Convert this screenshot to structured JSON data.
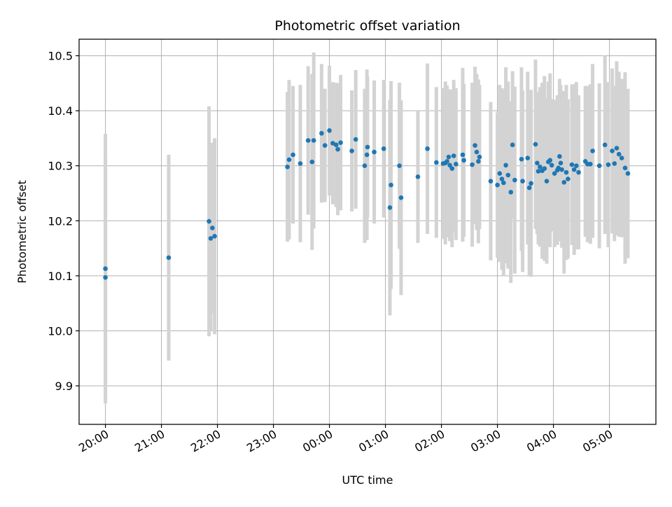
{
  "chart_data": {
    "type": "scatter",
    "title": "Photometric offset variation",
    "xlabel": "UTC time",
    "ylabel": "Photometric offset",
    "xlim": [
      -0.47,
      9.83
    ],
    "ylim": [
      9.83,
      10.53
    ],
    "grid": true,
    "x_ticks": [
      {
        "value": 0,
        "label": "20:00"
      },
      {
        "value": 1,
        "label": "21:00"
      },
      {
        "value": 2,
        "label": "22:00"
      },
      {
        "value": 3,
        "label": "23:00"
      },
      {
        "value": 4,
        "label": "00:00"
      },
      {
        "value": 5,
        "label": "01:00"
      },
      {
        "value": 6,
        "label": "02:00"
      },
      {
        "value": 7,
        "label": "03:00"
      },
      {
        "value": 8,
        "label": "04:00"
      },
      {
        "value": 9,
        "label": "05:00"
      }
    ],
    "y_ticks": [
      {
        "value": 9.9,
        "label": "9.9"
      },
      {
        "value": 10.0,
        "label": "10.0"
      },
      {
        "value": 10.1,
        "label": "10.1"
      },
      {
        "value": 10.2,
        "label": "10.2"
      },
      {
        "value": 10.3,
        "label": "10.3"
      },
      {
        "value": 10.4,
        "label": "10.4"
      },
      {
        "value": 10.5,
        "label": "10.5"
      }
    ],
    "point_color": "#1f77b4",
    "errorbar_color": "#d3d3d3",
    "series": [
      {
        "name": "offset",
        "x": [
          0.0,
          0.0,
          1.13,
          1.85,
          1.88,
          1.91,
          1.95,
          3.25,
          3.28,
          3.35,
          3.48,
          3.62,
          3.69,
          3.72,
          3.86,
          3.92,
          4.0,
          4.06,
          4.12,
          4.15,
          4.2,
          4.4,
          4.47,
          4.63,
          4.67,
          4.68,
          4.8,
          4.97,
          5.08,
          5.1,
          5.25,
          5.28,
          5.58,
          5.75,
          5.91,
          6.03,
          6.07,
          6.1,
          6.13,
          6.15,
          6.19,
          6.22,
          6.26,
          6.38,
          6.4,
          6.55,
          6.6,
          6.63,
          6.66,
          6.68,
          6.88,
          7.0,
          7.04,
          7.08,
          7.11,
          7.15,
          7.19,
          7.24,
          7.27,
          7.31,
          7.43,
          7.45,
          7.54,
          7.57,
          7.6,
          7.68,
          7.71,
          7.73,
          7.76,
          7.8,
          7.84,
          7.88,
          7.91,
          7.94,
          7.97,
          8.02,
          8.07,
          8.09,
          8.11,
          8.13,
          8.15,
          8.19,
          8.23,
          8.26,
          8.33,
          8.37,
          8.41,
          8.45,
          8.57,
          8.61,
          8.66,
          8.7,
          8.82,
          8.92,
          8.98,
          9.05,
          9.09,
          9.13,
          9.17,
          9.22,
          9.28,
          9.33
        ],
        "y": [
          10.113,
          10.097,
          10.133,
          10.199,
          10.168,
          10.187,
          10.172,
          10.298,
          10.311,
          10.32,
          10.304,
          10.346,
          10.307,
          10.346,
          10.359,
          10.337,
          10.364,
          10.341,
          10.338,
          10.33,
          10.342,
          10.327,
          10.348,
          10.3,
          10.32,
          10.334,
          10.325,
          10.331,
          10.224,
          10.265,
          10.3,
          10.242,
          10.28,
          10.331,
          10.306,
          10.304,
          10.305,
          10.308,
          10.316,
          10.301,
          10.295,
          10.318,
          10.303,
          10.32,
          10.31,
          10.302,
          10.337,
          10.325,
          10.308,
          10.316,
          10.272,
          10.265,
          10.286,
          10.276,
          10.269,
          10.301,
          10.283,
          10.252,
          10.338,
          10.274,
          10.312,
          10.272,
          10.314,
          10.26,
          10.268,
          10.339,
          10.305,
          10.29,
          10.298,
          10.291,
          10.295,
          10.272,
          10.307,
          10.31,
          10.301,
          10.286,
          10.292,
          10.296,
          10.317,
          10.305,
          10.293,
          10.27,
          10.288,
          10.276,
          10.302,
          10.293,
          10.3,
          10.288,
          10.308,
          10.303,
          10.303,
          10.327,
          10.3,
          10.338,
          10.302,
          10.327,
          10.304,
          10.332,
          10.321,
          10.314,
          10.296,
          10.286
        ],
        "yerr": [
          0.245,
          0.215,
          0.187,
          0.209,
          0.168,
          0.155,
          0.178,
          0.136,
          0.145,
          0.125,
          0.143,
          0.135,
          0.16,
          0.16,
          0.126,
          0.103,
          0.118,
          0.111,
          0.113,
          0.12,
          0.123,
          0.11,
          0.126,
          0.14,
          0.155,
          0.128,
          0.13,
          0.125,
          0.196,
          0.189,
          0.151,
          0.177,
          0.12,
          0.155,
          0.137,
          0.137,
          0.148,
          0.138,
          0.123,
          0.138,
          0.143,
          0.138,
          0.138,
          0.158,
          0.139,
          0.149,
          0.143,
          0.142,
          0.149,
          0.131,
          0.144,
          0.132,
          0.161,
          0.165,
          0.169,
          0.178,
          0.17,
          0.165,
          0.134,
          0.17,
          0.167,
          0.165,
          0.157,
          0.16,
          0.17,
          0.154,
          0.129,
          0.133,
          0.145,
          0.16,
          0.168,
          0.15,
          0.146,
          0.158,
          0.12,
          0.134,
          0.136,
          0.132,
          0.141,
          0.142,
          0.142,
          0.166,
          0.159,
          0.145,
          0.146,
          0.155,
          0.152,
          0.14,
          0.137,
          0.142,
          0.145,
          0.158,
          0.15,
          0.162,
          0.15,
          0.15,
          0.141,
          0.158,
          0.15,
          0.144,
          0.174,
          0.154
        ]
      }
    ]
  }
}
